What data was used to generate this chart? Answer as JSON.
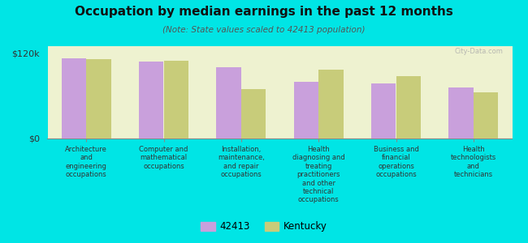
{
  "title": "Occupation by median earnings in the past 12 months",
  "subtitle": "(Note: State values scaled to 42413 population)",
  "background_color": "#00e5e5",
  "plot_bg_color": "#eef2d0",
  "categories": [
    "Architecture\nand\nengineering\noccupations",
    "Computer and\nmathematical\noccupations",
    "Installation,\nmaintenance,\nand repair\noccupations",
    "Health\ndiagnosing and\ntreating\npractitioners\nand other\ntechnical\noccupations",
    "Business and\nfinancial\noperations\noccupations",
    "Health\ntechnologists\nand\ntechnicians"
  ],
  "values_42413": [
    113000,
    108000,
    100000,
    80000,
    78000,
    72000
  ],
  "values_kentucky": [
    112000,
    110000,
    70000,
    97000,
    88000,
    65000
  ],
  "color_42413": "#c9a0dc",
  "color_kentucky": "#c8cc7a",
  "ylim": [
    0,
    130000
  ],
  "yticks": [
    0,
    120000
  ],
  "ytick_labels": [
    "$0",
    "$120k"
  ],
  "legend_labels": [
    "42413",
    "Kentucky"
  ],
  "watermark": "City-Data.com"
}
